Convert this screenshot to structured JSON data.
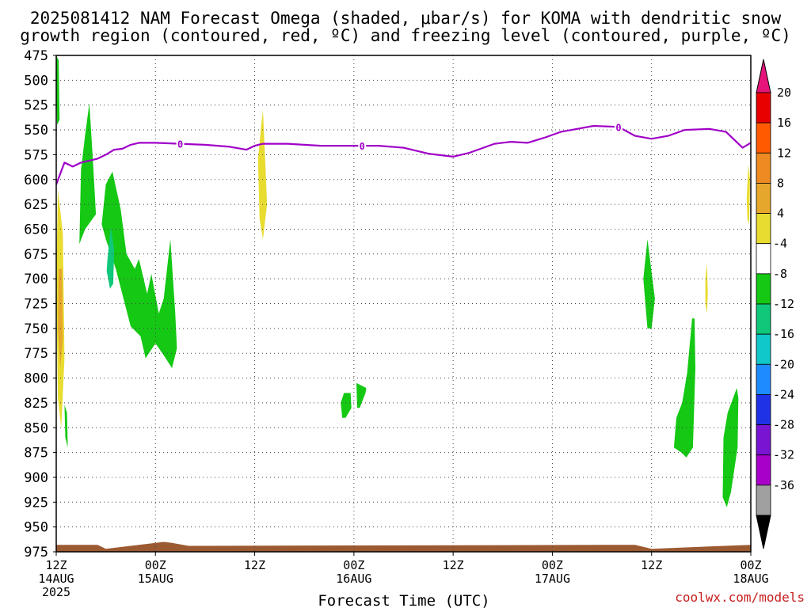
{
  "title_line1": "2025081412 NAM Forecast Omega (shaded, μbar/s) for KOMA with dendritic snow",
  "title_line2": "growth region (contoured, red, ºC) and freezing level (contoured, purple, ºC)",
  "xlabel": "Forecast Time (UTC)",
  "credit": "coolwx.com/models",
  "chart_data": {
    "type": "heatmap",
    "title": "2025081412 NAM Forecast Omega (shaded, μbar/s) for KOMA with dendritic snow growth region (contoured, red, ºC) and freezing level (contoured, purple, ºC)",
    "xlabel": "Forecast Time (UTC)",
    "x_unit": "forecast hours from 2025-08-14 12Z",
    "xlim": [
      0,
      84
    ],
    "ylim": [
      475,
      975
    ],
    "y_axis": "pressure (hPa), inverted",
    "y_ticks": [
      475,
      500,
      525,
      550,
      575,
      600,
      625,
      650,
      675,
      700,
      725,
      750,
      775,
      800,
      825,
      850,
      875,
      900,
      925,
      950,
      975
    ],
    "x_ticks": [
      {
        "hour": 0,
        "labels": [
          "12Z",
          "14AUG",
          "2025"
        ]
      },
      {
        "hour": 12,
        "labels": [
          "00Z",
          "15AUG"
        ]
      },
      {
        "hour": 24,
        "labels": [
          "12Z"
        ]
      },
      {
        "hour": 36,
        "labels": [
          "00Z",
          "16AUG"
        ]
      },
      {
        "hour": 48,
        "labels": [
          "12Z"
        ]
      },
      {
        "hour": 60,
        "labels": [
          "00Z",
          "17AUG"
        ]
      },
      {
        "hour": 72,
        "labels": [
          "12Z"
        ]
      },
      {
        "hour": 84,
        "labels": [
          "00Z",
          "18AUG"
        ]
      }
    ],
    "grid": true,
    "colorbar": {
      "levels": [
        20,
        16,
        12,
        8,
        4,
        -4,
        -8,
        -12,
        -16,
        -20,
        -24,
        -28,
        -32,
        -36
      ],
      "colors": [
        "#e80000",
        "#ff5a00",
        "#ee8a22",
        "#e6a82c",
        "#e8dc30",
        "#ffffff",
        "#14c814",
        "#10c87a",
        "#10c8c8",
        "#1e8cff",
        "#2032e6",
        "#7814d2",
        "#a800c8",
        "#a0a0a0"
      ],
      "top_color": "#e6147a",
      "bottom_color": "#000000"
    },
    "freezing_level": {
      "contour_label": "0",
      "label_hours": [
        15,
        37,
        68
      ],
      "points": [
        [
          0,
          605
        ],
        [
          1,
          583
        ],
        [
          2,
          587
        ],
        [
          3,
          583
        ],
        [
          5,
          579
        ],
        [
          6,
          575
        ],
        [
          7,
          570
        ],
        [
          8,
          569
        ],
        [
          9,
          565
        ],
        [
          10,
          563
        ],
        [
          12,
          563
        ],
        [
          15,
          564
        ],
        [
          18,
          565
        ],
        [
          21,
          567
        ],
        [
          23,
          570
        ],
        [
          24,
          566
        ],
        [
          25,
          564
        ],
        [
          28,
          564
        ],
        [
          30,
          565
        ],
        [
          32,
          566
        ],
        [
          36,
          566
        ],
        [
          39,
          566
        ],
        [
          42,
          568
        ],
        [
          45,
          574
        ],
        [
          48,
          577
        ],
        [
          50,
          573
        ],
        [
          53,
          564
        ],
        [
          55,
          562
        ],
        [
          57,
          563
        ],
        [
          59,
          558
        ],
        [
          61,
          552
        ],
        [
          63,
          549
        ],
        [
          65,
          546
        ],
        [
          68,
          547
        ],
        [
          70,
          556
        ],
        [
          72,
          559
        ],
        [
          74,
          556
        ],
        [
          76,
          550
        ],
        [
          79,
          549
        ],
        [
          81,
          552
        ],
        [
          83,
          568
        ],
        [
          84,
          563
        ]
      ]
    },
    "omega_regions": [
      {
        "color": "#e8dc30",
        "value_range": [
          4,
          8
        ],
        "points": [
          [
            0.2,
            610
          ],
          [
            0.8,
            655
          ],
          [
            1.0,
            780
          ],
          [
            0.6,
            850
          ],
          [
            0.2,
            820
          ],
          [
            0.0,
            700
          ]
        ]
      },
      {
        "color": "#e6a82c",
        "value_range": [
          8,
          12
        ],
        "points": [
          [
            0.3,
            690
          ],
          [
            0.7,
            690
          ],
          [
            0.8,
            760
          ],
          [
            0.5,
            790
          ],
          [
            0.2,
            750
          ]
        ]
      },
      {
        "color": "#14c814",
        "value_range": [
          -4,
          -8
        ],
        "points": [
          [
            1.0,
            827
          ],
          [
            1.3,
            835
          ],
          [
            1.4,
            870
          ],
          [
            1.1,
            860
          ]
        ]
      },
      {
        "color": "#14c814",
        "value_range": [
          -4,
          -8
        ],
        "points": [
          [
            0.0,
            475
          ],
          [
            0.3,
            480
          ],
          [
            0.4,
            540
          ],
          [
            0.1,
            545
          ],
          [
            0.0,
            500
          ]
        ]
      },
      {
        "color": "#14c814",
        "value_range": [
          -4,
          -8
        ],
        "points": [
          [
            3.0,
            590
          ],
          [
            3.5,
            555
          ],
          [
            4.0,
            523
          ],
          [
            4.4,
            575
          ],
          [
            4.8,
            635
          ],
          [
            3.5,
            650
          ],
          [
            2.8,
            665
          ]
        ]
      },
      {
        "color": "#14c814",
        "value_range": [
          -4,
          -8
        ],
        "points": [
          [
            5.5,
            645
          ],
          [
            6.0,
            605
          ],
          [
            6.8,
            592
          ],
          [
            7.8,
            630
          ],
          [
            8.5,
            675
          ],
          [
            9.5,
            690
          ],
          [
            10.0,
            680
          ],
          [
            11.0,
            715
          ],
          [
            11.5,
            695
          ],
          [
            12.4,
            735
          ],
          [
            13.0,
            720
          ],
          [
            13.8,
            660
          ],
          [
            14.4,
            735
          ],
          [
            14.6,
            770
          ],
          [
            14.0,
            790
          ],
          [
            13.0,
            777
          ],
          [
            12.0,
            765
          ],
          [
            10.8,
            780
          ],
          [
            10.2,
            758
          ],
          [
            9.0,
            748
          ],
          [
            7.2,
            690
          ],
          [
            6.0,
            660
          ]
        ]
      },
      {
        "color": "#10c87a",
        "value_range": [
          -8,
          -12
        ],
        "points": [
          [
            6.2,
            680
          ],
          [
            6.6,
            648
          ],
          [
            7.0,
            670
          ],
          [
            6.9,
            705
          ],
          [
            6.5,
            710
          ],
          [
            6.1,
            692
          ]
        ]
      },
      {
        "color": "#14c814",
        "value_range": [
          -4,
          -8
        ],
        "points": [
          [
            34.4,
            825
          ],
          [
            34.8,
            815
          ],
          [
            35.6,
            815
          ],
          [
            35.7,
            830
          ],
          [
            35.0,
            840
          ],
          [
            34.6,
            840
          ]
        ]
      },
      {
        "color": "#e8dc30",
        "value_range": [
          4,
          8
        ],
        "points": [
          [
            24.4,
            580
          ],
          [
            24.8,
            545
          ],
          [
            25.0,
            530
          ],
          [
            25.3,
            585
          ],
          [
            25.5,
            625
          ],
          [
            25.0,
            660
          ],
          [
            24.6,
            640
          ]
        ]
      },
      {
        "color": "#14c814",
        "value_range": [
          -4,
          -8
        ],
        "points": [
          [
            36.3,
            805
          ],
          [
            37.5,
            810
          ],
          [
            37.4,
            815
          ],
          [
            36.7,
            830
          ],
          [
            36.4,
            830
          ]
        ]
      },
      {
        "color": "#14c814",
        "value_range": [
          -4,
          -8
        ],
        "points": [
          [
            71.0,
            700
          ],
          [
            71.5,
            660
          ],
          [
            72.4,
            720
          ],
          [
            72.0,
            750
          ],
          [
            71.5,
            750
          ]
        ]
      },
      {
        "color": "#14c814",
        "value_range": [
          -4,
          -8
        ],
        "points": [
          [
            74.7,
            870
          ],
          [
            75.0,
            840
          ],
          [
            75.7,
            825
          ],
          [
            76.3,
            795
          ],
          [
            76.9,
            740
          ],
          [
            77.2,
            740
          ],
          [
            77.3,
            790
          ],
          [
            77.0,
            870
          ],
          [
            76.2,
            880
          ],
          [
            75.6,
            875
          ]
        ]
      },
      {
        "color": "#e8dc30",
        "value_range": [
          4,
          8
        ],
        "points": [
          [
            78.5,
            700
          ],
          [
            78.7,
            685
          ],
          [
            78.8,
            715
          ],
          [
            78.7,
            735
          ],
          [
            78.5,
            725
          ]
        ]
      },
      {
        "color": "#14c814",
        "value_range": [
          -4,
          -8
        ],
        "points": [
          [
            80.7,
            860
          ],
          [
            81.2,
            835
          ],
          [
            82.3,
            810
          ],
          [
            82.5,
            820
          ],
          [
            82.4,
            870
          ],
          [
            81.6,
            915
          ],
          [
            81.1,
            930
          ],
          [
            80.6,
            920
          ]
        ]
      },
      {
        "color": "#e8dc30",
        "value_range": [
          4,
          8
        ],
        "points": [
          [
            83.5,
            620
          ],
          [
            83.7,
            585
          ],
          [
            83.9,
            600
          ],
          [
            83.8,
            645
          ],
          [
            83.6,
            640
          ]
        ]
      }
    ],
    "terrain": {
      "color": "#9c5a32",
      "points": [
        [
          0,
          968
        ],
        [
          5,
          968
        ],
        [
          6,
          972
        ],
        [
          10,
          968
        ],
        [
          13,
          965
        ],
        [
          14,
          966
        ],
        [
          16,
          969
        ],
        [
          70,
          968
        ],
        [
          72,
          972
        ],
        [
          84,
          968
        ]
      ]
    }
  }
}
